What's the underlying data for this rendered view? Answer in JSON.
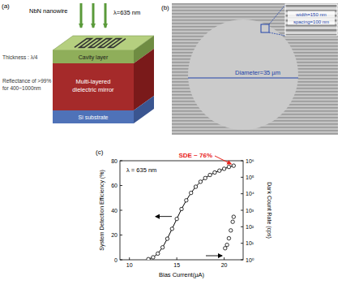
{
  "panel_labels": [
    "(a)",
    "(b)",
    "(c)"
  ],
  "panel_a": {
    "nanowire_label": "NbN nanowire",
    "incident_label": "λ=635 nm",
    "thickness_label": "Thickness : λ/4",
    "reflectance_label": [
      "Reflectance of >99%",
      "for 400~1000nm"
    ],
    "layers": [
      "Cavity layer",
      "Multi-layered dielectric mirror",
      "Si substrate"
    ]
  },
  "panel_b": {
    "diameter_label": "Diameter=35 µm",
    "inset_labels": [
      "width=150 nm",
      "spacing=100 nm"
    ]
  },
  "chart_data": {
    "type": "line",
    "x_label": "Bias Current(µA)",
    "y_label": "System Detection Efficiency (%)",
    "y2_label": "Dark Count Rate (cps)",
    "annotations": [
      {
        "text": "λ = 635 nm",
        "color": "#000000"
      },
      {
        "text": "SDE ~ 76%",
        "color": "#e8221a"
      }
    ],
    "xlim": [
      9,
      22
    ],
    "xticks": [
      10,
      15,
      20
    ],
    "ylim": [
      0,
      80
    ],
    "yticks": [
      0,
      20,
      40,
      60,
      80
    ],
    "y2lim": [
      1,
      1000000
    ],
    "y2ticks": [
      {
        "value": 1,
        "label": "10⁰"
      },
      {
        "value": 10,
        "label": "10¹"
      },
      {
        "value": 100,
        "label": "10²"
      },
      {
        "value": 1000,
        "label": "10³"
      },
      {
        "value": 10000,
        "label": "10⁴"
      },
      {
        "value": 100000,
        "label": "10⁵"
      },
      {
        "value": 1000000,
        "label": "10⁶"
      }
    ],
    "log": "y2",
    "series": [
      {
        "type": "line",
        "color": "#000000",
        "marker": "circle",
        "x": [
          12,
          12.5,
          13,
          13.5,
          14,
          14.5,
          15,
          15.5,
          16,
          16.5,
          17,
          17.5,
          18,
          18.5,
          19,
          19.5,
          20,
          20.5,
          21
        ],
        "values": [
          0.5,
          2,
          5,
          10,
          17,
          25,
          33,
          41,
          48,
          54,
          59,
          63,
          66,
          68.5,
          70.5,
          72,
          73.5,
          75,
          76
        ]
      },
      {
        "type": "scatter",
        "axis": "y2",
        "color": "#000000",
        "marker": "circle",
        "x": [
          20.1,
          20.3,
          20.5,
          20.7,
          20.9,
          21
        ],
        "values": [
          5,
          8,
          20,
          60,
          200,
          400
        ]
      }
    ]
  }
}
